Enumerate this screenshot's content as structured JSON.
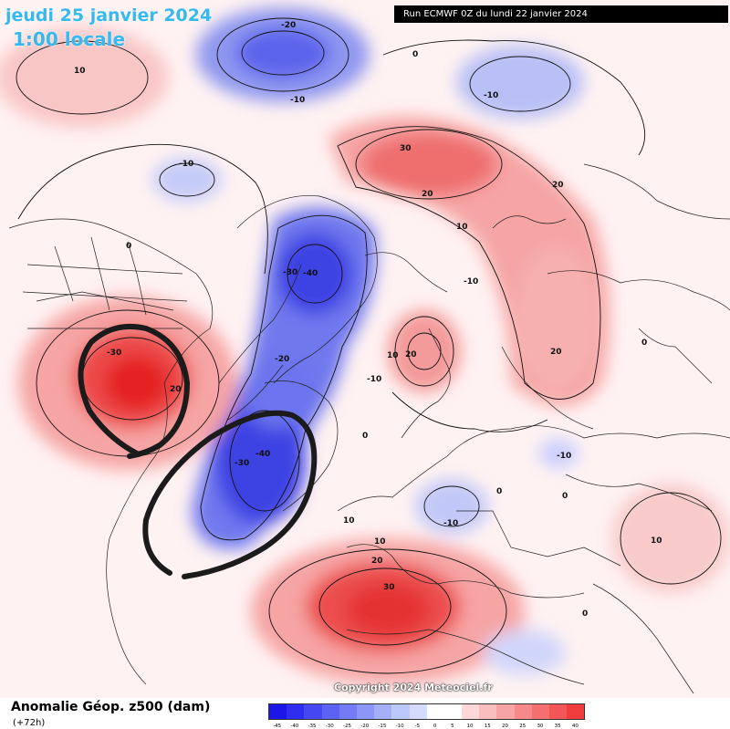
{
  "header": {
    "date": "jeudi 25 janvier 2024",
    "local_time": "1:00 locale",
    "run": "Run ECMWF 0Z du lundi 22 janvier 2024"
  },
  "footer": {
    "field": "Anomalie Géop. z500 (dam)",
    "lead": "(+72h)",
    "copyright": "Copyright 2024 Meteociel.fr"
  },
  "legend": {
    "colors": [
      "#1c16e8",
      "#2f2df0",
      "#4547f2",
      "#5c62f4",
      "#747cf5",
      "#8c96f7",
      "#a4aff8",
      "#bcc8fa",
      "#d4dbfc",
      "#ffffff",
      "#ffffff",
      "#fcd8d8",
      "#fabebe",
      "#f8a4a4",
      "#f68a8a",
      "#f47070",
      "#f25656",
      "#f03c3c"
    ],
    "ticks": [
      "-45",
      "-40",
      "-35",
      "-30",
      "-25",
      "-20",
      "-15",
      "-10",
      "-5",
      "0",
      "5",
      "10",
      "15",
      "20",
      "25",
      "30",
      "35",
      "40"
    ]
  },
  "contour_labels": {
    "l1": "10",
    "l2": "-20",
    "l3": "-10",
    "l4": "0",
    "l5": "-10",
    "l6": "30",
    "l7": "20",
    "l8": "-10",
    "l9": "0",
    "l10": "10",
    "l11": "-30",
    "l12": "-40",
    "l13": "-10",
    "l14": "20",
    "l15": "-30",
    "l16": "20",
    "l17": "10",
    "l18": "-10",
    "l19": "20",
    "l20": "-20",
    "l21": "0",
    "l22": "-30",
    "l23": "-40",
    "l24": "0",
    "l25": "-10",
    "l26": "-10",
    "l27": "10",
    "l28": "20",
    "l29": "30",
    "l30": "10",
    "l31": "0",
    "l32": "0",
    "l33": "20",
    "l34": "0",
    "l35": "10"
  }
}
